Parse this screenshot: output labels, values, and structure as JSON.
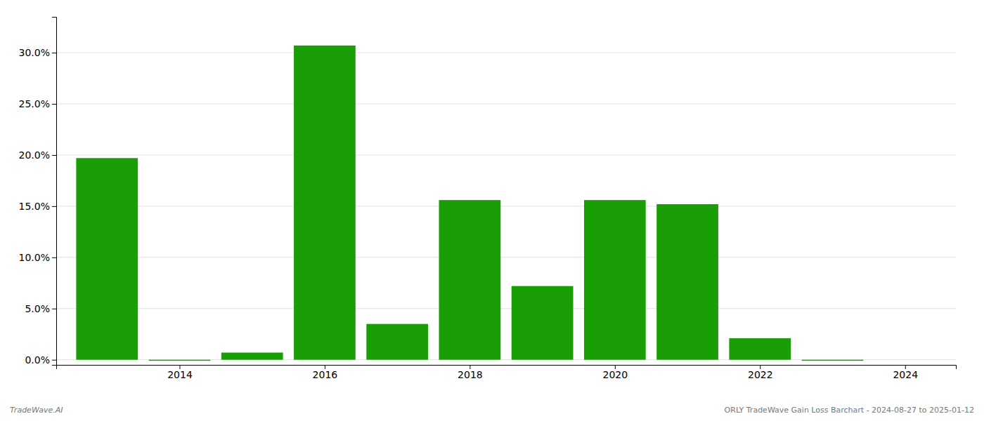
{
  "chart_data": {
    "type": "bar",
    "x": [
      2013,
      2014,
      2015,
      2016,
      2017,
      2018,
      2019,
      2020,
      2021,
      2022,
      2023,
      2024
    ],
    "values": [
      0.197,
      -0.001,
      0.007,
      0.307,
      0.035,
      0.156,
      0.072,
      0.156,
      0.152,
      0.021,
      -0.001,
      0.0
    ],
    "color": "#1a9e06",
    "xlim": [
      2012.3,
      2024.7
    ],
    "xticks": [
      2014,
      2016,
      2018,
      2020,
      2022,
      2024
    ],
    "ylim": [
      -0.005,
      0.335
    ],
    "yticks": [
      {
        "value": 0.0,
        "label": "0.0%"
      },
      {
        "value": 0.05,
        "label": "5.0%"
      },
      {
        "value": 0.1,
        "label": "10.0%"
      },
      {
        "value": 0.15,
        "label": "15.0%"
      },
      {
        "value": 0.2,
        "label": "20.0%"
      },
      {
        "value": 0.25,
        "label": "25.0%"
      },
      {
        "value": 0.3,
        "label": "30.0%"
      }
    ],
    "grid": true,
    "annotations": [
      "TradeWave.AI",
      "ORLY TradeWave Gain Loss Barchart - 2024-08-27 to 2025-01-12"
    ]
  }
}
